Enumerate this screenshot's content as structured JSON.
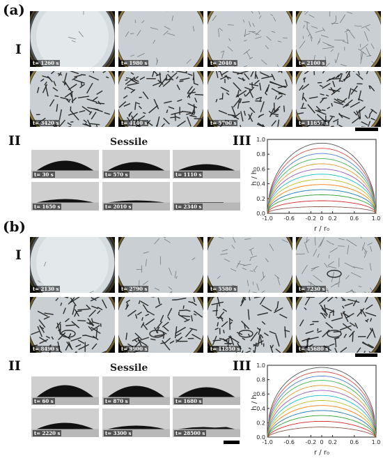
{
  "figure": {
    "panel_a": {
      "letter": "(a)",
      "row_I": {
        "label": "I",
        "times": [
          "t= 1260 s",
          "t= 1980 s",
          "t= 2040 s",
          "t= 2100 s",
          "t= 3420 s",
          "t= 4140 s",
          "t= 5700 s",
          "t= 11657 s"
        ]
      },
      "row_II": {
        "label": "II",
        "title": "Sessile",
        "times": [
          "t= 30 s",
          "t= 570 s",
          "t= 1110 s",
          "t= 1650 s",
          "t= 2010 s",
          "t= 2340 s"
        ]
      },
      "row_III": {
        "label": "III"
      }
    },
    "panel_b": {
      "letter": "(b)",
      "row_I": {
        "label": "I",
        "times": [
          "t= 2130 s",
          "t= 2790 s",
          "t= 5580 s",
          "t= 7230 s",
          "t= 8490 s",
          "t= 9900 s",
          "t= 11850 s",
          "t= 45680 s"
        ]
      },
      "row_II": {
        "label": "II",
        "title": "Sessile",
        "times": [
          "t= 60 s",
          "t= 870 s",
          "t= 1680 s",
          "t= 2220 s",
          "t= 3300 s",
          "t= 28500 s"
        ]
      },
      "row_III": {
        "label": "III"
      }
    }
  },
  "chart_data": [
    {
      "type": "line",
      "ylabel": "h / h₀",
      "xlabel": "r / r₀",
      "xlim": [
        -1.0,
        1.0
      ],
      "ylim": [
        0,
        1.0
      ],
      "xticks": [
        "-1.0",
        "-0.6",
        "-0.2",
        "0",
        "0.2",
        "0.6",
        "1.0"
      ],
      "xtick_values": [
        -1.0,
        -0.6,
        -0.2,
        0,
        0.2,
        0.6,
        1.0
      ],
      "yticks": [
        "0.0",
        "0.2",
        "0.4",
        "0.6",
        "0.8",
        "1.0"
      ],
      "ytick_values": [
        0.0,
        0.2,
        0.4,
        0.6,
        0.8,
        1.0
      ],
      "shape": "cap",
      "series": [
        {
          "peak": 0.95,
          "color": "#555555"
        },
        {
          "peak": 0.88,
          "color": "#d94a4a"
        },
        {
          "peak": 0.81,
          "color": "#4a7fd9"
        },
        {
          "peak": 0.74,
          "color": "#3fb54a"
        },
        {
          "peak": 0.67,
          "color": "#e39a2f"
        },
        {
          "peak": 0.6,
          "color": "#9b59b6"
        },
        {
          "peak": 0.53,
          "color": "#17becf"
        },
        {
          "peak": 0.46,
          "color": "#bcbd22"
        },
        {
          "peak": 0.39,
          "color": "#ff7f0e"
        },
        {
          "peak": 0.32,
          "color": "#1f77b4"
        },
        {
          "peak": 0.25,
          "color": "#2ca02c"
        },
        {
          "peak": 0.17,
          "color": "#d62728"
        },
        {
          "peak": 0.09,
          "color": "#8c564b"
        }
      ]
    },
    {
      "type": "line",
      "ylabel": "h / h₀",
      "xlabel": "r / r₀",
      "xlim": [
        -1.0,
        1.0
      ],
      "ylim": [
        0,
        1.0
      ],
      "xticks": [
        "-1.0",
        "-0.6",
        "-0.2",
        "0",
        "0.2",
        "0.6",
        "1.0"
      ],
      "xtick_values": [
        -1.0,
        -0.6,
        -0.2,
        0,
        0.2,
        0.6,
        1.0
      ],
      "yticks": [
        "0.0",
        "0.2",
        "0.4",
        "0.6",
        "0.8",
        "1.0"
      ],
      "ytick_values": [
        0.0,
        0.2,
        0.4,
        0.6,
        0.8,
        1.0
      ],
      "shape": "ring",
      "series": [
        {
          "peak": 0.97,
          "color": "#555555"
        },
        {
          "peak": 0.91,
          "color": "#d94a4a"
        },
        {
          "peak": 0.85,
          "color": "#4a7fd9"
        },
        {
          "peak": 0.79,
          "color": "#3fb54a"
        },
        {
          "peak": 0.72,
          "color": "#e39a2f"
        },
        {
          "peak": 0.65,
          "color": "#9b59b6"
        },
        {
          "peak": 0.58,
          "color": "#17becf"
        },
        {
          "peak": 0.51,
          "color": "#bcbd22"
        },
        {
          "peak": 0.44,
          "color": "#ff7f0e"
        },
        {
          "peak": 0.37,
          "color": "#1f77b4"
        },
        {
          "peak": 0.3,
          "color": "#2ca02c"
        },
        {
          "peak": 0.22,
          "color": "#d62728"
        },
        {
          "peak": 0.14,
          "color": "#8c564b"
        }
      ]
    }
  ]
}
